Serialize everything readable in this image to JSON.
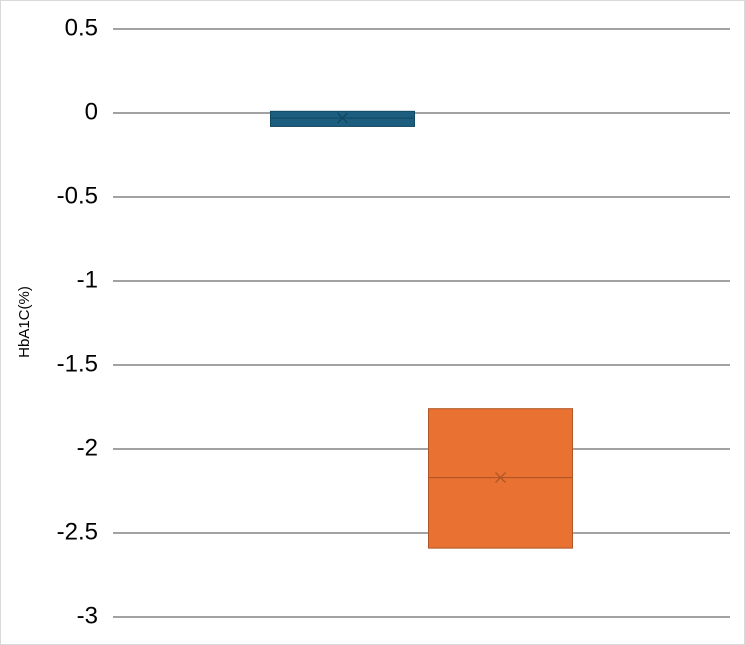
{
  "chart_data": {
    "type": "box",
    "y_label": "HbA1C(%)",
    "ylim": [
      -3,
      0.5
    ],
    "yticks": [
      0.5,
      0,
      -0.5,
      -1,
      -1.5,
      -2,
      -2.5,
      -3
    ],
    "grid": true,
    "series": [
      {
        "color": "#1b5e80",
        "q1": -0.08,
        "median": -0.03,
        "q3": 0.01,
        "mean": -0.03
      },
      {
        "color": "#e97132",
        "q1": -2.59,
        "median": -2.17,
        "q3": -1.76,
        "mean": -2.17
      }
    ]
  }
}
